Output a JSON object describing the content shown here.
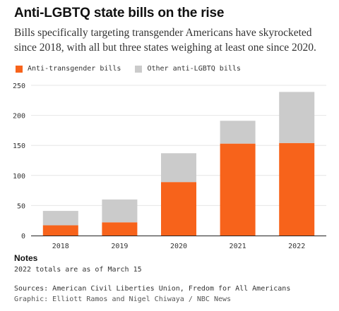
{
  "header": {
    "title": "Anti-LGBTQ state bills on the rise",
    "subtitle": "Bills specifically targeting transgender Americans have skyrocketed since 2018, with all but three states weighing at least one since 2020."
  },
  "colors": {
    "transgender": "#f7631b",
    "other": "#cbcbcb",
    "grid": "#e6e6e6",
    "axis": "#222222"
  },
  "chart_data": {
    "type": "bar",
    "stacked": true,
    "categories": [
      "2018",
      "2019",
      "2020",
      "2021",
      "2022"
    ],
    "series": [
      {
        "name": "Anti-transgender bills",
        "values": [
          17,
          22,
          89,
          153,
          154
        ]
      },
      {
        "name": "Other anti-LGBTQ bills",
        "values": [
          24,
          38,
          48,
          38,
          85
        ]
      }
    ],
    "yticks": [
      "0",
      "50",
      "100",
      "150",
      "200",
      "250"
    ],
    "ylim": [
      0,
      250
    ],
    "grid": true,
    "legend": "top-left"
  },
  "notes": {
    "heading": "Notes",
    "text": "2022 totals are as of March 15"
  },
  "footer": {
    "sources": "Sources: American Civil Liberties Union, Fredom for All Americans",
    "credit": "Graphic: Elliott Ramos and Nigel Chiwaya / NBC News"
  }
}
